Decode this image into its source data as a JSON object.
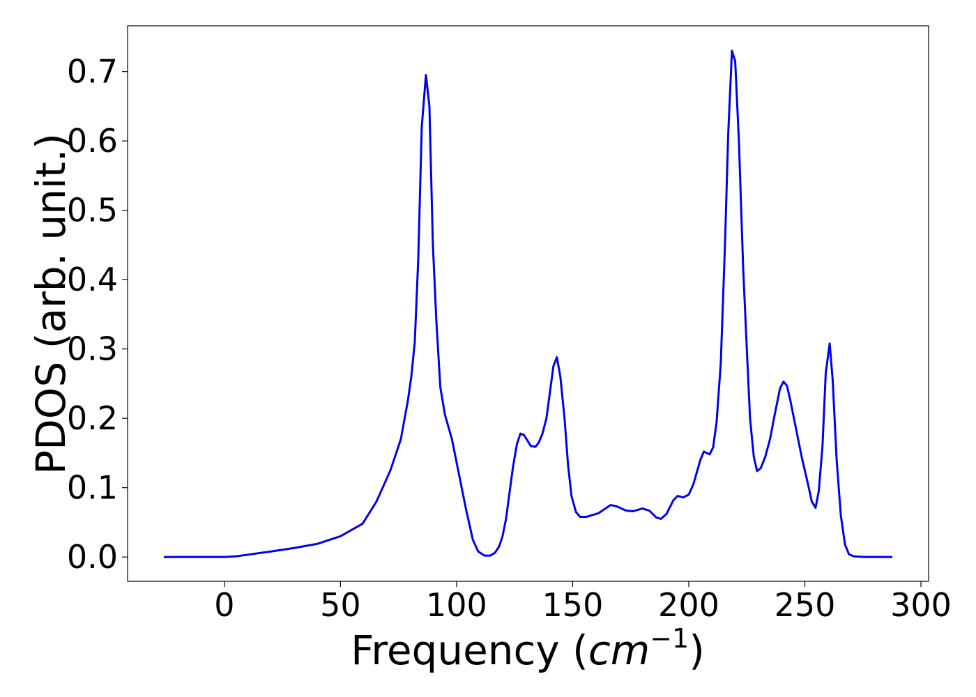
{
  "chart_data": {
    "type": "line",
    "xlabel": [
      "Frequency (",
      "cm",
      "−1",
      ")"
    ],
    "ylabel": "PDOS (arb. unit.)",
    "xlim": [
      -41.7,
      303.3
    ],
    "ylim": [
      -0.035,
      0.766
    ],
    "xticks": [
      0,
      50,
      100,
      150,
      200,
      250,
      300
    ],
    "yticks": [
      {
        "value": 0,
        "label": "0.0"
      },
      0.1,
      0.2,
      0.3,
      0.4,
      0.5,
      0.6,
      0.7
    ],
    "grid": false,
    "x": [
      -26.1,
      0,
      5,
      20,
      30,
      40,
      50,
      59.5,
      65.5,
      71.5,
      76,
      79,
      80.5,
      82,
      83.5,
      85,
      86.8,
      88.3,
      89.8,
      91.3,
      93,
      95,
      98,
      101,
      104,
      107,
      109.3,
      112,
      114.4,
      116.5,
      118.3,
      119.8,
      121.3,
      124.3,
      126,
      127.5,
      129,
      132,
      134,
      135.4,
      137,
      138.7,
      141.7,
      143.2,
      144.7,
      146.5,
      148,
      149.5,
      151.4,
      153.2,
      156,
      161,
      166.4,
      169,
      173,
      176,
      180,
      183,
      186,
      188,
      190.4,
      193.4,
      195.2,
      197.6,
      200,
      202,
      205,
      206.5,
      209,
      210.5,
      212,
      213.8,
      215.6,
      217,
      218.6,
      220,
      221.6,
      223.4,
      225,
      226.4,
      228,
      229.4,
      231,
      233,
      235,
      237,
      239.3,
      240.8,
      242.3,
      243.8,
      245.6,
      248.6,
      251.7,
      253,
      254.6,
      256,
      257.6,
      259,
      260.7,
      262,
      263.7,
      265.5,
      267.3,
      269,
      271,
      275.7,
      287.7
    ],
    "series": [
      {
        "name": "PDOS",
        "color": "#0000ee",
        "values": [
          0,
          0,
          0.001,
          0.008,
          0.013,
          0.019,
          0.03,
          0.048,
          0.08,
          0.125,
          0.17,
          0.225,
          0.26,
          0.31,
          0.43,
          0.62,
          0.695,
          0.65,
          0.45,
          0.34,
          0.245,
          0.205,
          0.17,
          0.12,
          0.07,
          0.025,
          0.008,
          0.002,
          0.002,
          0.006,
          0.015,
          0.03,
          0.055,
          0.13,
          0.163,
          0.178,
          0.176,
          0.16,
          0.159,
          0.165,
          0.178,
          0.2,
          0.275,
          0.288,
          0.26,
          0.2,
          0.133,
          0.088,
          0.065,
          0.058,
          0.058,
          0.063,
          0.075,
          0.073,
          0.067,
          0.066,
          0.07,
          0.067,
          0.057,
          0.055,
          0.062,
          0.082,
          0.088,
          0.086,
          0.09,
          0.105,
          0.14,
          0.152,
          0.148,
          0.158,
          0.195,
          0.28,
          0.45,
          0.61,
          0.73,
          0.715,
          0.6,
          0.42,
          0.3,
          0.2,
          0.145,
          0.124,
          0.128,
          0.145,
          0.17,
          0.205,
          0.243,
          0.253,
          0.247,
          0.225,
          0.195,
          0.145,
          0.1,
          0.08,
          0.071,
          0.095,
          0.16,
          0.265,
          0.308,
          0.255,
          0.14,
          0.06,
          0.018,
          0.004,
          0.001,
          0,
          0
        ]
      }
    ]
  }
}
